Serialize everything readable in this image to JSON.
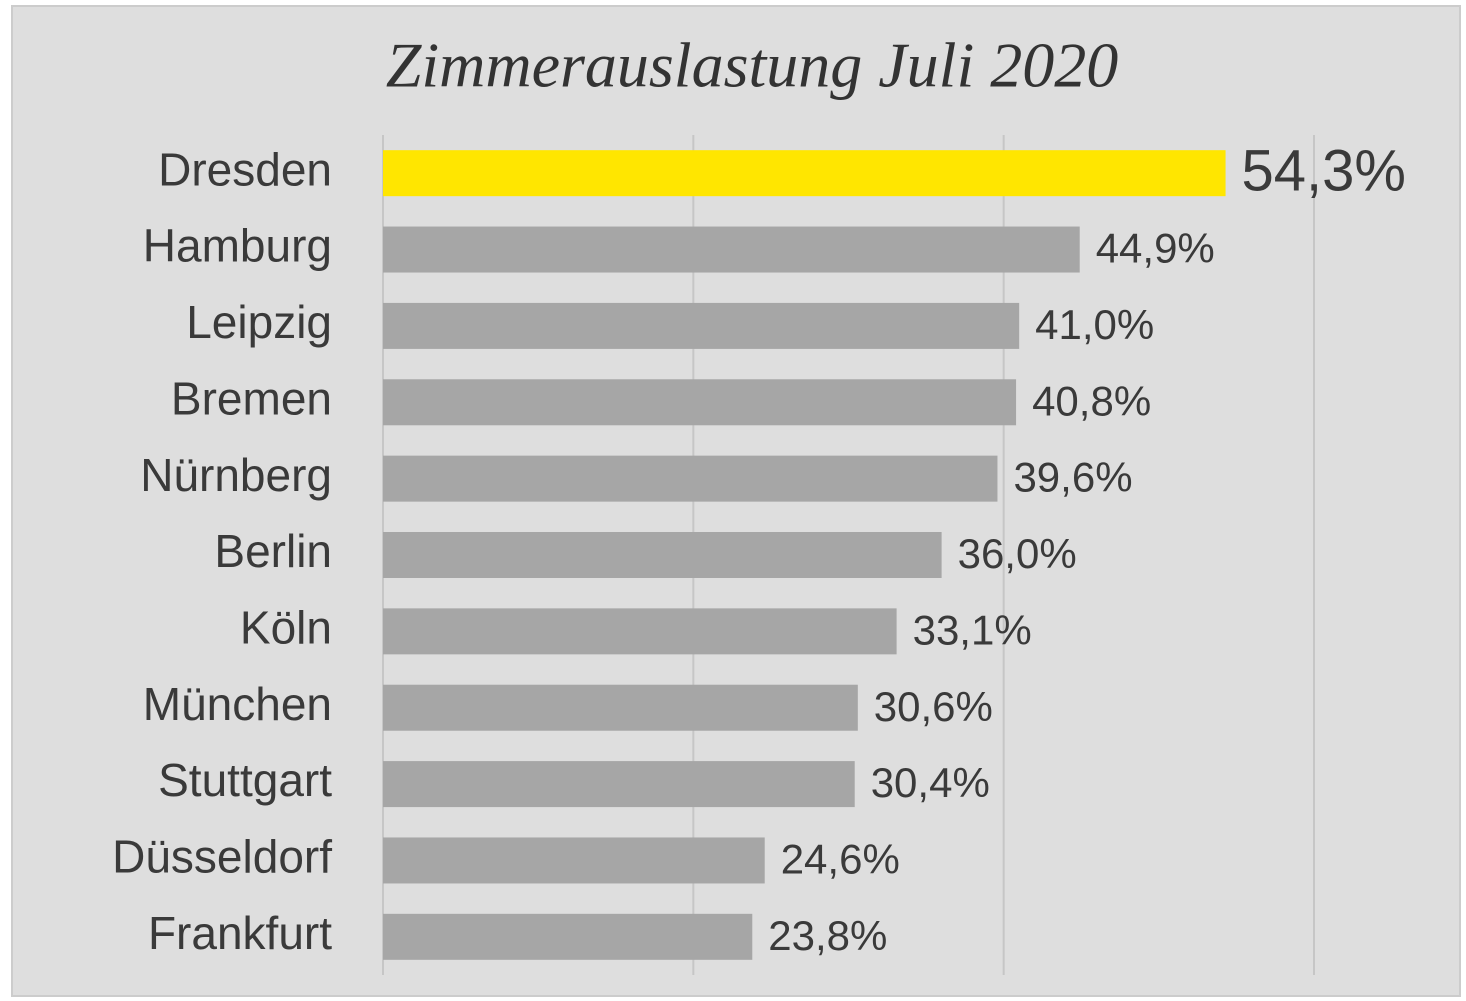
{
  "chart_data": {
    "type": "bar",
    "orientation": "horizontal",
    "title": "Zimmerauslastung Juli 2020",
    "categories": [
      "Dresden",
      "Hamburg",
      "Leipzig",
      "Bremen",
      "Nürnberg",
      "Berlin",
      "Köln",
      "München",
      "Stuttgart",
      "Düsseldorf",
      "Frankfurt"
    ],
    "values": [
      54.3,
      44.9,
      41.0,
      40.8,
      39.6,
      36.0,
      33.1,
      30.6,
      30.4,
      24.6,
      23.8
    ],
    "value_labels": [
      "54,3%",
      "44,9%",
      "41,0%",
      "40,8%",
      "39,6%",
      "36,0%",
      "33,1%",
      "30,6%",
      "30,4%",
      "24,6%",
      "23,8%"
    ],
    "colors": [
      "#ffe600",
      "#a6a6a6",
      "#a6a6a6",
      "#a6a6a6",
      "#a6a6a6",
      "#a6a6a6",
      "#a6a6a6",
      "#a6a6a6",
      "#a6a6a6",
      "#a6a6a6",
      "#a6a6a6"
    ],
    "xlim": [
      0,
      60
    ],
    "xticks": [
      0,
      20,
      40,
      60
    ],
    "grid": true
  }
}
